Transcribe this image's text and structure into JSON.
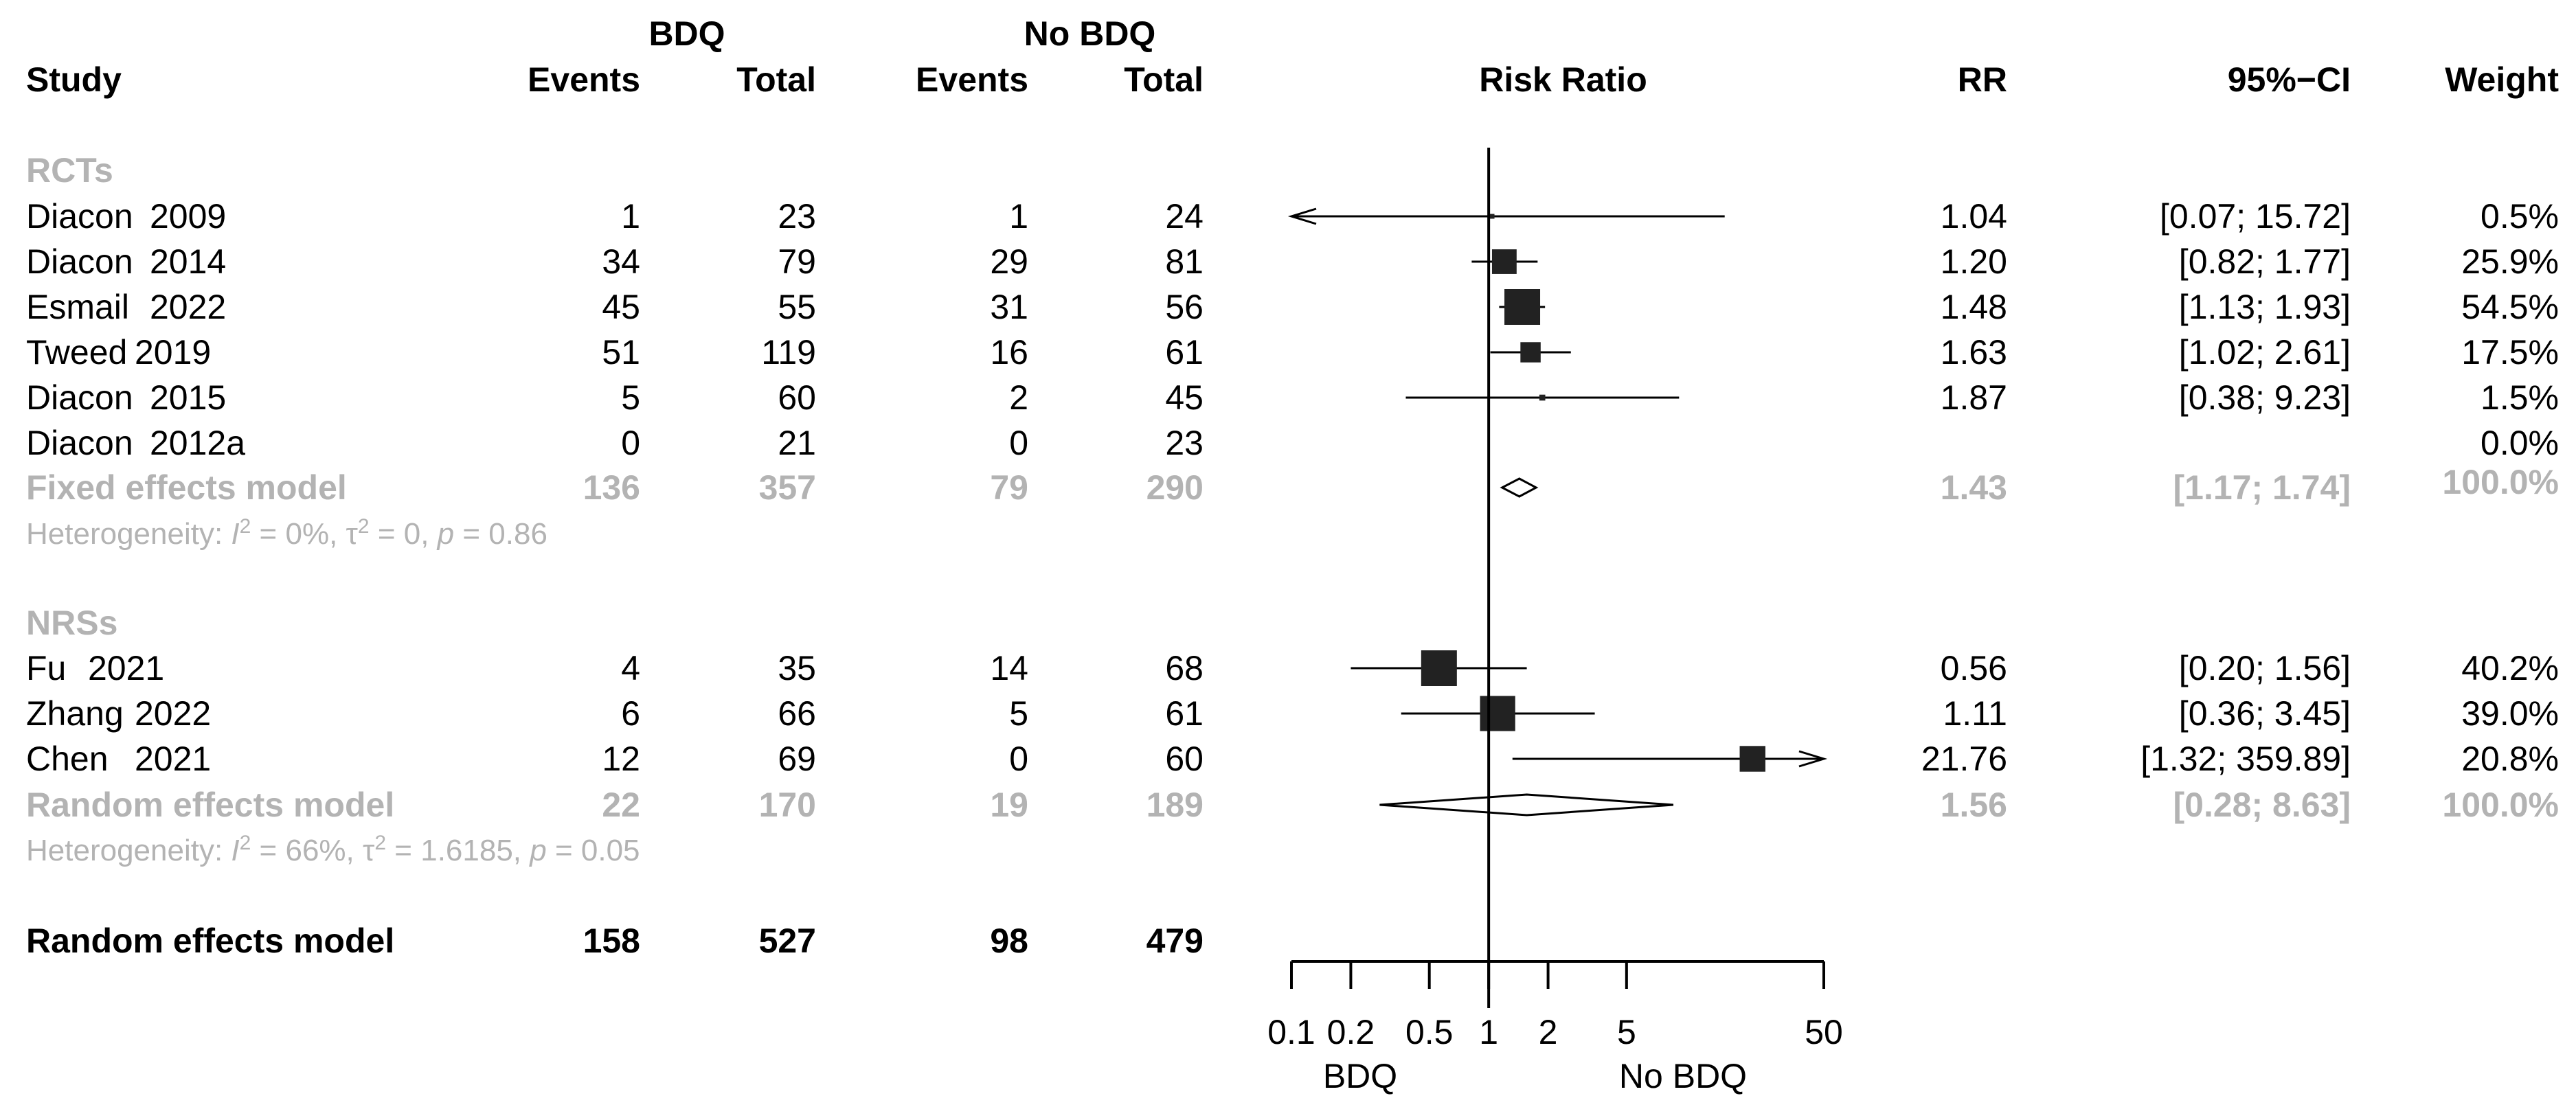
{
  "headers": {
    "group1": "BDQ",
    "group2": "No BDQ",
    "study": "Study",
    "events1": "Events",
    "total1": "Total",
    "events2": "Events",
    "total2": "Total",
    "plot": "Risk Ratio",
    "rr": "RR",
    "ci": "95%−CI",
    "weight": "Weight"
  },
  "chart_data": {
    "type": "forest",
    "title": "Risk Ratio",
    "xscale": "log",
    "xlim": [
      0.1,
      50
    ],
    "xticks": [
      0.1,
      0.2,
      0.5,
      1,
      2,
      5,
      50
    ],
    "xtick_labels": [
      "0.1",
      "0.2",
      "0.5",
      "1",
      "2",
      "5",
      "50"
    ],
    "null_value": 1,
    "axis_left_label": "BDQ",
    "axis_right_label": "No BDQ",
    "subgroups": [
      {
        "label": "RCTs",
        "studies": [
          {
            "name": "Diacon",
            "year": "2009",
            "events1": "1",
            "total1": "23",
            "events2": "1",
            "total2": "24",
            "rr": 1.04,
            "lower": 0.07,
            "upper": 15.72,
            "rr_text": "1.04",
            "ci_text": "[0.07;  15.72]",
            "weight": 0.5,
            "weight_text": "0.5%"
          },
          {
            "name": "Diacon",
            "year": "2014",
            "events1": "34",
            "total1": "79",
            "events2": "29",
            "total2": "81",
            "rr": 1.2,
            "lower": 0.82,
            "upper": 1.77,
            "rr_text": "1.20",
            "ci_text": "[0.82;    1.77]",
            "weight": 25.9,
            "weight_text": "25.9%"
          },
          {
            "name": "Esmail",
            "year": "2022",
            "events1": "45",
            "total1": "55",
            "events2": "31",
            "total2": "56",
            "rr": 1.48,
            "lower": 1.13,
            "upper": 1.93,
            "rr_text": "1.48",
            "ci_text": "[1.13;    1.93]",
            "weight": 54.5,
            "weight_text": "54.5%"
          },
          {
            "name": "Tweed",
            "year": "2019",
            "events1": "51",
            "total1": "119",
            "events2": "16",
            "total2": "61",
            "rr": 1.63,
            "lower": 1.02,
            "upper": 2.61,
            "rr_text": "1.63",
            "ci_text": "[1.02;    2.61]",
            "weight": 17.5,
            "weight_text": "17.5%"
          },
          {
            "name": "Diacon",
            "year": "2015",
            "events1": "5",
            "total1": "60",
            "events2": "2",
            "total2": "45",
            "rr": 1.87,
            "lower": 0.38,
            "upper": 9.23,
            "rr_text": "1.87",
            "ci_text": "[0.38;    9.23]",
            "weight": 1.5,
            "weight_text": "1.5%"
          },
          {
            "name": "Diacon",
            "year": "2012a",
            "events1": "0",
            "total1": "21",
            "events2": "0",
            "total2": "23",
            "rr": null,
            "lower": null,
            "upper": null,
            "rr_text": "",
            "ci_text": "",
            "weight": 0.0,
            "weight_text": "0.0%"
          }
        ],
        "summary": {
          "label": "Fixed effects model",
          "events1": "136",
          "total1": "357",
          "events2": "79",
          "total2": "290",
          "rr": 1.43,
          "lower": 1.17,
          "upper": 1.74,
          "rr_text": "1.43",
          "ci_text": "[1.17;    1.74]",
          "weight_text": "100.0%"
        },
        "heterogeneity": {
          "prefix": "Heterogeneity: ",
          "i2_symbol": "I",
          "i2_sup": "2",
          "i2_value": " = 0%, ",
          "tau_symbol": "τ",
          "tau_sup": "2",
          "tau_value": " = 0, ",
          "p_symbol": "p",
          "p_value": " = 0.86"
        }
      },
      {
        "label": "NRSs",
        "studies": [
          {
            "name": "Fu",
            "year": "2021",
            "events1": "4",
            "total1": "35",
            "events2": "14",
            "total2": "68",
            "rr": 0.56,
            "lower": 0.2,
            "upper": 1.56,
            "rr_text": "0.56",
            "ci_text": "[0.20;    1.56]",
            "weight": 40.2,
            "weight_text": "40.2%"
          },
          {
            "name": "Zhang",
            "year": "2022",
            "events1": "6",
            "total1": "66",
            "events2": "5",
            "total2": "61",
            "rr": 1.11,
            "lower": 0.36,
            "upper": 3.45,
            "rr_text": "1.11",
            "ci_text": "[0.36;    3.45]",
            "weight": 39.0,
            "weight_text": "39.0%"
          },
          {
            "name": "Chen",
            "year": "2021",
            "events1": "12",
            "total1": "69",
            "events2": "0",
            "total2": "60",
            "rr": 21.76,
            "lower": 1.32,
            "upper": 359.89,
            "rr_text": "21.76",
            "ci_text": "[1.32; 359.89]",
            "weight": 20.8,
            "weight_text": "20.8%"
          }
        ],
        "summary": {
          "label": "Random effects model",
          "events1": "22",
          "total1": "170",
          "events2": "19",
          "total2": "189",
          "rr": 1.56,
          "lower": 0.28,
          "upper": 8.63,
          "rr_text": "1.56",
          "ci_text": "[0.28;    8.63]",
          "weight_text": "100.0%"
        },
        "heterogeneity": {
          "prefix": "Heterogeneity: ",
          "i2_symbol": "I",
          "i2_sup": "2",
          "i2_value": " = 66%, ",
          "tau_symbol": "τ",
          "tau_sup": "2",
          "tau_value": " = 1.6185, ",
          "p_symbol": "p",
          "p_value": " = 0.05"
        }
      }
    ],
    "overall": {
      "label": "Random effects model",
      "events1": "158",
      "total1": "527",
      "events2": "98",
      "total2": "479"
    },
    "colors": {
      "main": "#000000",
      "subgroup": "#b3b3b3",
      "square": "#222222",
      "background": "#ffffff"
    }
  }
}
